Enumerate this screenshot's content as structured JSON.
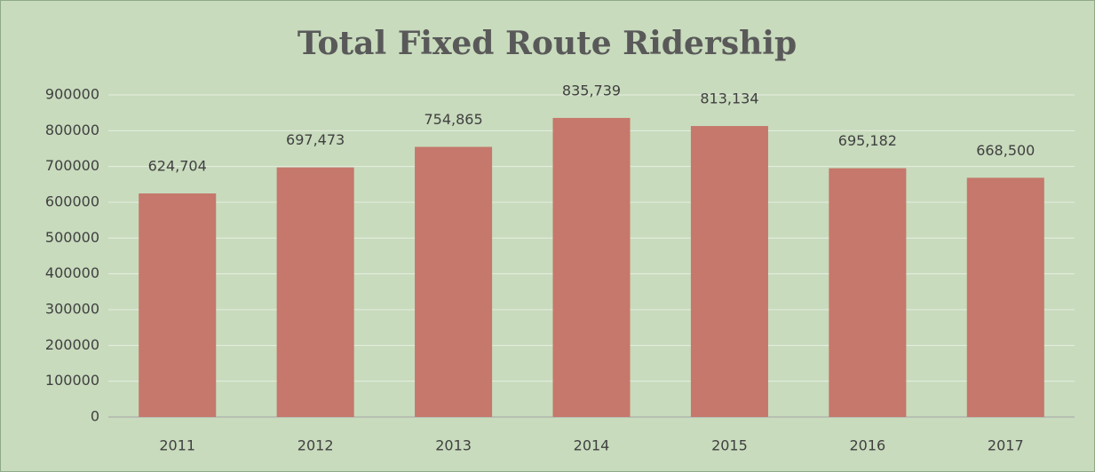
{
  "chart_data": {
    "type": "bar",
    "title": "Total Fixed Route Ridership",
    "categories": [
      "2011",
      "2012",
      "2013",
      "2014",
      "2015",
      "2016",
      "2017"
    ],
    "values": [
      624704,
      697473,
      754865,
      835739,
      813134,
      695182,
      668500
    ],
    "value_labels": [
      "624,704",
      "697,473",
      "754,865",
      "835,739",
      "813,134",
      "695,182",
      "668,500"
    ],
    "color": "#c5786b",
    "ylim": [
      0,
      900000
    ],
    "yticks": [
      0,
      100000,
      200000,
      300000,
      400000,
      500000,
      600000,
      700000,
      800000,
      900000
    ],
    "grid": true
  }
}
